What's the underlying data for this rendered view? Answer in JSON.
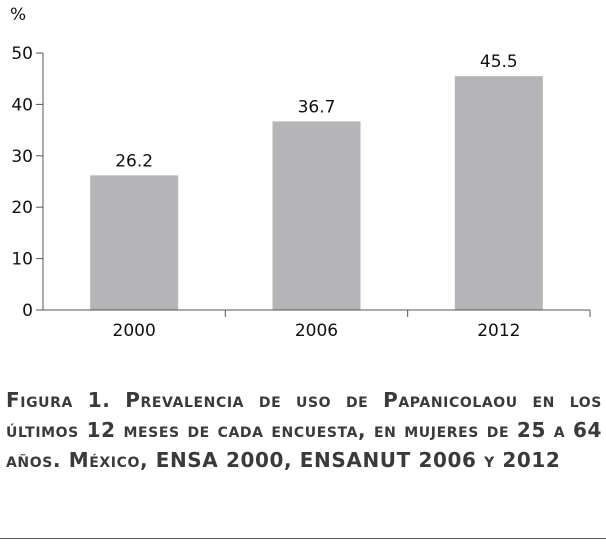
{
  "chart_data": {
    "type": "bar",
    "ylabel": "%",
    "categories": [
      "2000",
      "2006",
      "2012"
    ],
    "values": [
      26.2,
      36.7,
      45.5
    ],
    "value_labels": [
      "26.2",
      "36.7",
      "45.5"
    ],
    "ylim": [
      0,
      50
    ],
    "yticks": [
      "0",
      "10",
      "20",
      "30",
      "40",
      "50"
    ],
    "grid": false,
    "bar_color": "#b5b5b7",
    "axis_color": "#555555"
  },
  "caption": {
    "text": "Figura 1. Prevalencia de uso de Papanicolaou en los últimos 12 meses de cada encuesta, en mujeres de 25 a 64 años. México, ENSA 2000, ENSANUT 2006 y 2012"
  }
}
